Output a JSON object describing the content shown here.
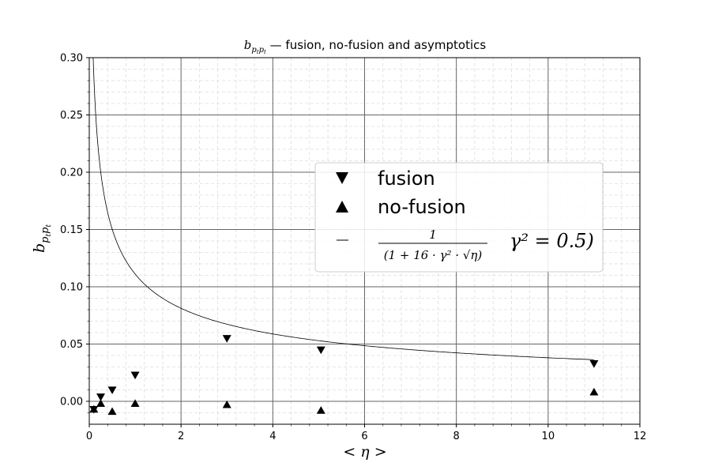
{
  "chart_data": {
    "type": "scatter",
    "title": "b_{p_t p_t} — fusion, no-fusion and asymptotics",
    "title_parts": {
      "symbol": "b",
      "subscript": "p",
      "subsub1": "t",
      "subscript2": "p",
      "subsub2": "t",
      "rest": " — fusion, no-fusion and asymptotics"
    },
    "xlabel": "< η >",
    "ylabel": "b_{p_t p_t}",
    "xlim": [
      0,
      12
    ],
    "ylim": [
      -0.02,
      0.3
    ],
    "x_ticks": [
      0,
      2,
      4,
      6,
      8,
      10,
      12
    ],
    "x_tick_labels": [
      "0",
      "2",
      "4",
      "6",
      "8",
      "10",
      "12"
    ],
    "y_ticks": [
      0.0,
      0.05,
      0.1,
      0.15,
      0.2,
      0.25,
      0.3
    ],
    "y_tick_labels": [
      "0.00",
      "0.05",
      "0.10",
      "0.15",
      "0.20",
      "0.25",
      "0.30"
    ],
    "grid": "major and minor",
    "legend_placement": "center-right",
    "series": [
      {
        "name": "fusion",
        "marker": "triangle-down",
        "x": [
          0.1,
          0.25,
          0.5,
          1.0,
          3.0,
          5.05,
          11.0
        ],
        "y": [
          -0.007,
          0.004,
          0.01,
          0.023,
          0.055,
          0.045,
          0.033
        ]
      },
      {
        "name": "no-fusion",
        "marker": "triangle-up",
        "x": [
          0.1,
          0.25,
          0.5,
          1.0,
          3.0,
          5.05,
          11.0
        ],
        "y": [
          -0.007,
          -0.002,
          -0.009,
          -0.002,
          -0.003,
          -0.008,
          0.008
        ]
      }
    ],
    "curve": {
      "name": "1 / (1 + 16 · γ² · √η)",
      "legend_numerator": "1",
      "legend_denominator": "(1 + 16 · γ² · √η)",
      "legend_extra": "γ² = 0.5)",
      "gamma_squared": 0.5,
      "coefficient": 16,
      "x_start": 0.02,
      "x_end": 11.0
    }
  },
  "colors": {
    "marker": "#000000",
    "curve": "#000000",
    "major_grid": "#666666",
    "minor_grid": "#dddddd",
    "legend_border": "#cccccc"
  }
}
